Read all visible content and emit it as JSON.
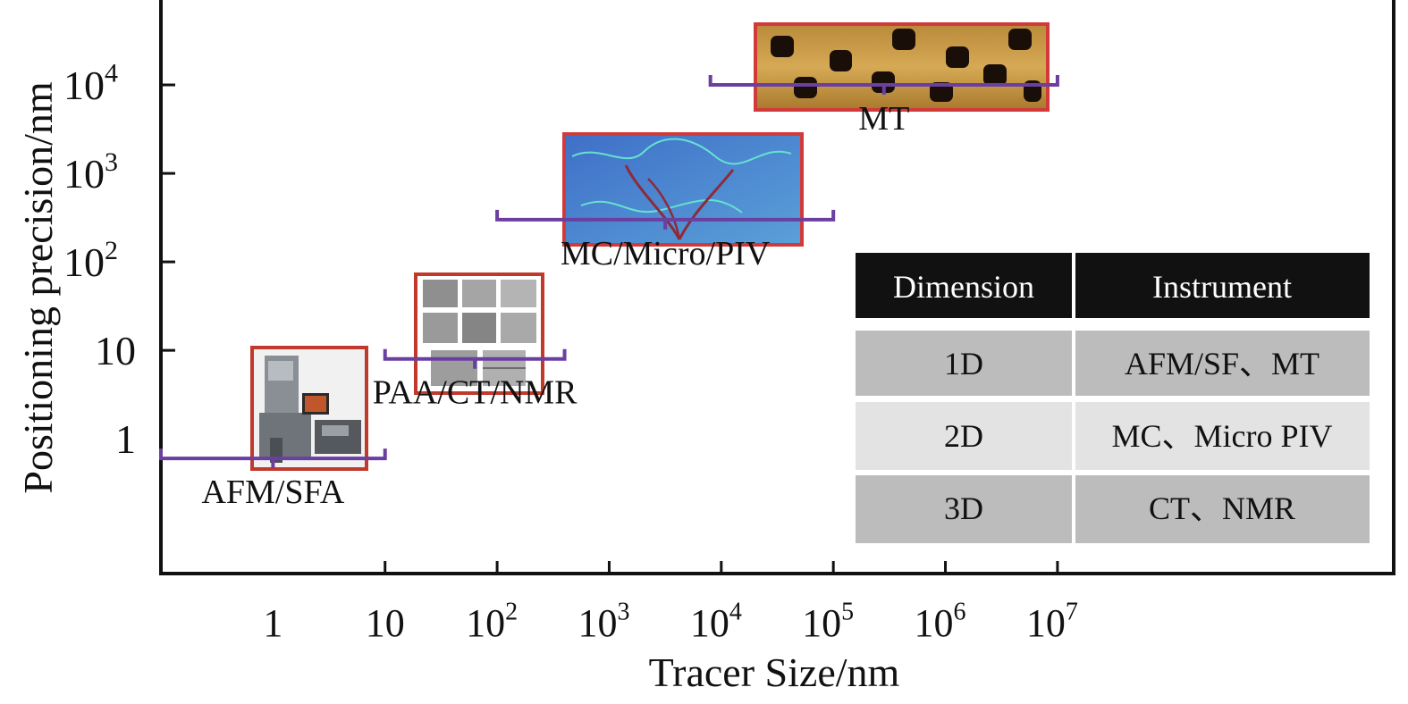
{
  "chart_data": {
    "type": "scatter",
    "xlabel": "Tracer Size/nm",
    "ylabel": "Positioning precision/nm",
    "x_scale": "log",
    "y_scale": "log",
    "xlim": [
      0.1,
      10000000000
    ],
    "ylim": [
      0.03,
      100000
    ],
    "x_ticks": [
      {
        "value": 1,
        "base": "1",
        "exp": ""
      },
      {
        "value": 10,
        "base": "10",
        "exp": ""
      },
      {
        "value": 100,
        "base": "10",
        "exp": "2"
      },
      {
        "value": 1000,
        "base": "10",
        "exp": "3"
      },
      {
        "value": 10000,
        "base": "10",
        "exp": "4"
      },
      {
        "value": 100000,
        "base": "10",
        "exp": "5"
      },
      {
        "value": 1000000,
        "base": "10",
        "exp": "6"
      },
      {
        "value": 10000000,
        "base": "10",
        "exp": "7"
      }
    ],
    "y_ticks": [
      {
        "value": 1,
        "base": "1",
        "exp": ""
      },
      {
        "value": 10,
        "base": "10",
        "exp": ""
      },
      {
        "value": 100,
        "base": "10",
        "exp": "2"
      },
      {
        "value": 1000,
        "base": "10",
        "exp": "3"
      },
      {
        "value": 10000,
        "base": "10",
        "exp": "4"
      }
    ],
    "grid": false,
    "techniques": [
      {
        "label": "AFM/SFA",
        "x_range": [
          0.1,
          10
        ],
        "precision": 0.6,
        "image": "instrument-photo"
      },
      {
        "label": "PAA/CT/NMR",
        "x_range": [
          10,
          400
        ],
        "precision": 8,
        "image": "grayscale-grid"
      },
      {
        "label": "MC/Micro/PIV",
        "x_range": [
          100,
          100000
        ],
        "precision": 300,
        "image": "blue-channel"
      },
      {
        "label": "MT",
        "x_range": [
          8000,
          10000000
        ],
        "precision": 10000,
        "image": "afm-topography"
      }
    ],
    "table": {
      "headers": [
        "Dimension",
        "Instrument"
      ],
      "rows": [
        [
          "1D",
          "AFM/SF、MT"
        ],
        [
          "2D",
          "MC、Micro PIV"
        ],
        [
          "3D",
          "CT、NMR"
        ]
      ]
    },
    "colors": {
      "bracket": "#6b3fa0",
      "frame": "#cc3333",
      "table_header": "#111111",
      "row_dark": "#bcbcbc",
      "row_light": "#e3e3e3"
    }
  }
}
